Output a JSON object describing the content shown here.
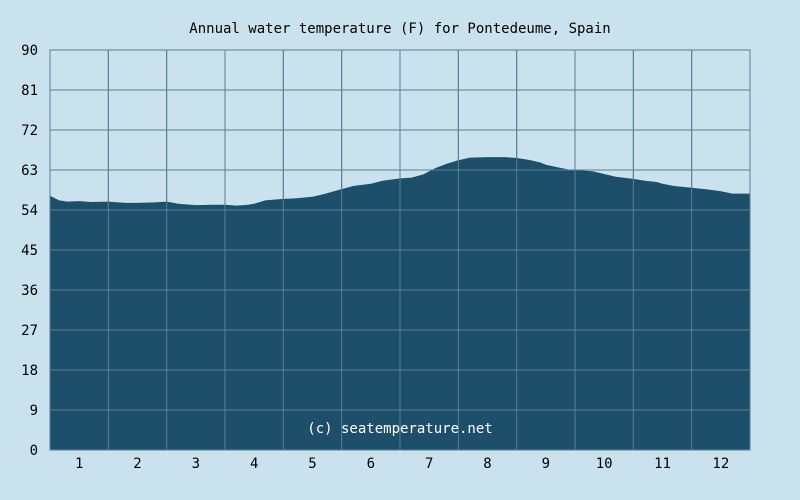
{
  "chart_data": {
    "type": "area",
    "title": "Annual water temperature (F) for Pontedeume, Spain",
    "xlabel": "",
    "ylabel": "",
    "x_ticks": [
      "1",
      "2",
      "3",
      "4",
      "5",
      "6",
      "7",
      "8",
      "9",
      "10",
      "11",
      "12"
    ],
    "y_ticks": [
      "0",
      "9",
      "18",
      "27",
      "36",
      "45",
      "54",
      "63",
      "72",
      "81",
      "90"
    ],
    "ylim": [
      0,
      90
    ],
    "xlim": [
      0.5,
      12.5
    ],
    "grid": true,
    "fill_color": "#1e4f6a",
    "background_color": "#cae2ee",
    "grid_color": "#5a7f96",
    "credit": "(c) seatemperature.net",
    "series": [
      {
        "x": [
          0.5,
          0.65,
          0.8,
          1.0,
          1.2,
          1.5,
          1.8,
          2.0,
          2.3,
          2.5,
          2.7,
          3.0,
          3.3,
          3.5,
          3.7,
          3.9,
          4.0,
          4.2,
          4.5,
          4.7,
          5.0,
          5.2,
          5.5,
          5.7,
          6.0,
          6.2,
          6.5,
          6.7,
          6.9,
          7.1,
          7.3,
          7.5,
          7.7,
          8.0,
          8.3,
          8.5,
          8.7,
          8.9,
          9.0,
          9.2,
          9.4,
          9.6,
          9.8,
          10.0,
          10.2,
          10.5,
          10.7,
          10.9,
          11.0,
          11.2,
          11.5,
          11.8,
          12.0,
          12.2,
          12.5
        ],
        "values": [
          57.2,
          56.2,
          55.9,
          56.0,
          55.8,
          55.9,
          55.6,
          55.6,
          55.7,
          55.9,
          55.4,
          55.1,
          55.2,
          55.2,
          55.0,
          55.2,
          55.4,
          56.2,
          56.5,
          56.6,
          57.0,
          57.6,
          58.7,
          59.4,
          59.9,
          60.6,
          61.1,
          61.3,
          62.0,
          63.4,
          64.4,
          65.2,
          65.8,
          65.9,
          65.9,
          65.7,
          65.3,
          64.7,
          64.2,
          63.6,
          63.1,
          62.9,
          62.7,
          62.1,
          61.5,
          61.0,
          60.6,
          60.3,
          59.9,
          59.4,
          59.0,
          58.6,
          58.2,
          57.7,
          57.7
        ]
      }
    ]
  }
}
